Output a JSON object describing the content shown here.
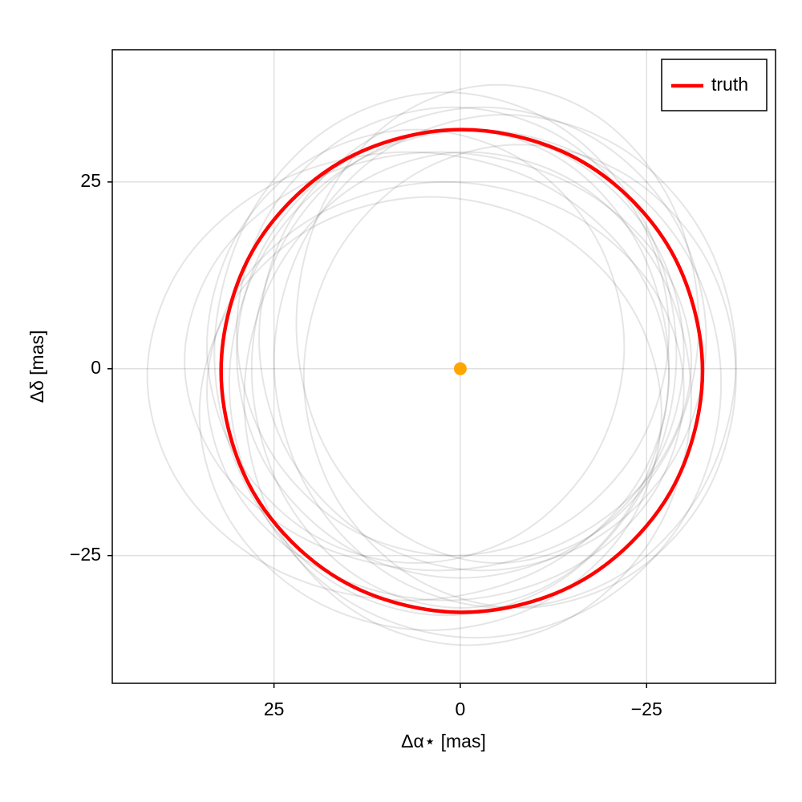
{
  "chart_data": {
    "type": "line",
    "xlabel": "Δα⋆ [mas]",
    "ylabel": "Δδ [mas]",
    "xlim": [
      46.7,
      -42.3
    ],
    "ylim": [
      -42.1,
      42.7
    ],
    "xticks": [
      25,
      0,
      {
        "value": -25,
        "label": "−25"
      }
    ],
    "yticks": [
      {
        "value": -25,
        "label": "−25"
      },
      0,
      25
    ],
    "grid": true,
    "legend_position": "top-right",
    "closed": true,
    "sample_color": "#000000",
    "samples": [
      {
        "x": [
          30,
          26,
          15,
          0,
          -15,
          -26,
          -30,
          -26,
          -15,
          0,
          15,
          26
        ],
        "y": [
          2,
          17,
          28,
          32,
          28,
          17,
          2,
          -13,
          -24,
          -28,
          -24,
          -13
        ]
      },
      {
        "x": [
          34,
          29.7,
          18,
          2,
          -14,
          -25.7,
          -30,
          -25.7,
          -14,
          2,
          18,
          29.7
        ],
        "y": [
          -3,
          11,
          21.2,
          25,
          21.2,
          11,
          -3,
          -17,
          -27.2,
          -31,
          -27.2,
          -17
        ]
      },
      {
        "x": [
          27,
          23,
          12,
          -3,
          -18,
          -29,
          -33,
          -29,
          -18,
          -3,
          12,
          23
        ],
        "y": [
          4,
          19.5,
          30.8,
          35,
          30.8,
          19.5,
          4,
          -11.5,
          -22.8,
          -27,
          -22.8,
          -11.5
        ]
      },
      {
        "x": [
          42,
          37.3,
          24.5,
          7,
          -10.5,
          -23.3,
          -28,
          -23.3,
          -10.5,
          7,
          24.5,
          37.3
        ],
        "y": [
          -1,
          14,
          25,
          29,
          25,
          14,
          -1,
          -16,
          -27,
          -31,
          -27,
          -16
        ]
      },
      {
        "x": [
          25,
          20.8,
          9.5,
          -6,
          -21.5,
          -32.8,
          -37,
          -32.8,
          -21.5,
          -6,
          9.5,
          20.8
        ],
        "y": [
          1,
          17.5,
          29.6,
          34,
          29.6,
          17.5,
          1,
          -15.5,
          -27.6,
          -32,
          -27.6,
          -15.5
        ]
      },
      {
        "x": [
          30,
          26.1,
          15.5,
          1,
          -13.5,
          -24.1,
          -28,
          -24.1,
          -13.5,
          1,
          15.5,
          26.1
        ],
        "y": [
          5,
          20,
          31,
          35,
          31,
          20,
          5,
          -10,
          -21,
          -25,
          -21,
          -10
        ]
      },
      {
        "x": [
          35,
          30.8,
          19.5,
          4,
          -11.5,
          -22.8,
          -27,
          -22.8,
          -11.5,
          4,
          19.5,
          30.8
        ],
        "y": [
          -6,
          8.5,
          19.1,
          23,
          19.1,
          8.5,
          -6,
          -20.5,
          -31.1,
          -35,
          -31.1,
          -20.5
        ]
      },
      {
        "x": [
          31,
          26.6,
          14.5,
          -2,
          -18.5,
          -30.6,
          -35,
          -30.6,
          -18.5,
          -2,
          14.5,
          26.6
        ],
        "y": [
          -2,
          15,
          27.4,
          32,
          27.4,
          15,
          -2,
          -19,
          -31.4,
          -36,
          -31.4,
          -19
        ]
      },
      {
        "x": [
          28,
          24.2,
          14,
          0,
          -14,
          -24.2,
          -28,
          -24.2,
          -14,
          0,
          14,
          24.2
        ],
        "y": [
          0,
          16,
          27.7,
          32,
          27.7,
          16,
          0,
          -16,
          -27.7,
          -32,
          -27.7,
          -16
        ]
      },
      {
        "x": [
          22,
          18.4,
          8.5,
          -5,
          -18.5,
          -28.4,
          -32,
          -28.4,
          -18.5,
          -5,
          8.5,
          18.4
        ],
        "y": [
          6,
          22,
          33.7,
          38,
          33.7,
          22,
          6,
          -10,
          -21.7,
          -26,
          -21.7,
          -10
        ]
      },
      {
        "x": [
          37,
          32.4,
          20,
          3,
          -14,
          -26.4,
          -31,
          -26.4,
          -14,
          3,
          20,
          32.4
        ],
        "y": [
          1,
          15,
          25.2,
          29,
          25.2,
          15,
          1,
          -13,
          -23.2,
          -27,
          -23.2,
          -13
        ]
      },
      {
        "x": [
          29,
          25,
          14,
          -1,
          -16,
          -27,
          -31,
          -27,
          -16,
          -1,
          14,
          25
        ],
        "y": [
          -4,
          12.5,
          24.6,
          29,
          24.6,
          12.5,
          -4,
          -20.5,
          -32.6,
          -37,
          -32.6,
          -20.5
        ]
      },
      {
        "x": [
          34,
          30.2,
          20,
          6,
          -8,
          -18.2,
          -22,
          -18.2,
          -8,
          6,
          20,
          30.2
        ],
        "y": [
          3,
          17.5,
          28.1,
          32,
          28.1,
          17.5,
          3,
          -11.5,
          -22.1,
          -26,
          -22.1,
          -11.5
        ]
      },
      {
        "x": [
          21,
          17.1,
          6.5,
          -8,
          -22.5,
          -33.1,
          -37,
          -33.1,
          -22.5,
          -8,
          6.5,
          17.1
        ],
        "y": [
          -1,
          14.5,
          25.8,
          30,
          25.8,
          14.5,
          -1,
          -16.5,
          -27.8,
          -32,
          -27.8,
          -16.5
        ]
      },
      {
        "x": [
          33,
          28.8,
          17.5,
          2,
          -13.5,
          -24.8,
          -29,
          -24.8,
          -13.5,
          2,
          17.5,
          28.8
        ],
        "y": [
          2,
          19.5,
          32.3,
          37,
          32.3,
          19.5,
          2,
          -15.5,
          -28.3,
          -33,
          -28.3,
          -15.5
        ]
      }
    ],
    "series": [
      {
        "name": "truth",
        "color": "#ff0000",
        "x": [
          32.1,
          27.8,
          16.0,
          -0.2,
          -16.4,
          -28.2,
          -32.5,
          -28.2,
          -16.4,
          -0.2,
          16.0,
          27.8
        ],
        "y": [
          -0.3,
          15.9,
          27.7,
          32.0,
          27.7,
          15.9,
          -0.3,
          -16.5,
          -28.3,
          -32.6,
          -28.3,
          -16.5
        ]
      }
    ],
    "star": {
      "x": [
        0
      ],
      "y": [
        0
      ],
      "color": "#ffa500"
    }
  }
}
